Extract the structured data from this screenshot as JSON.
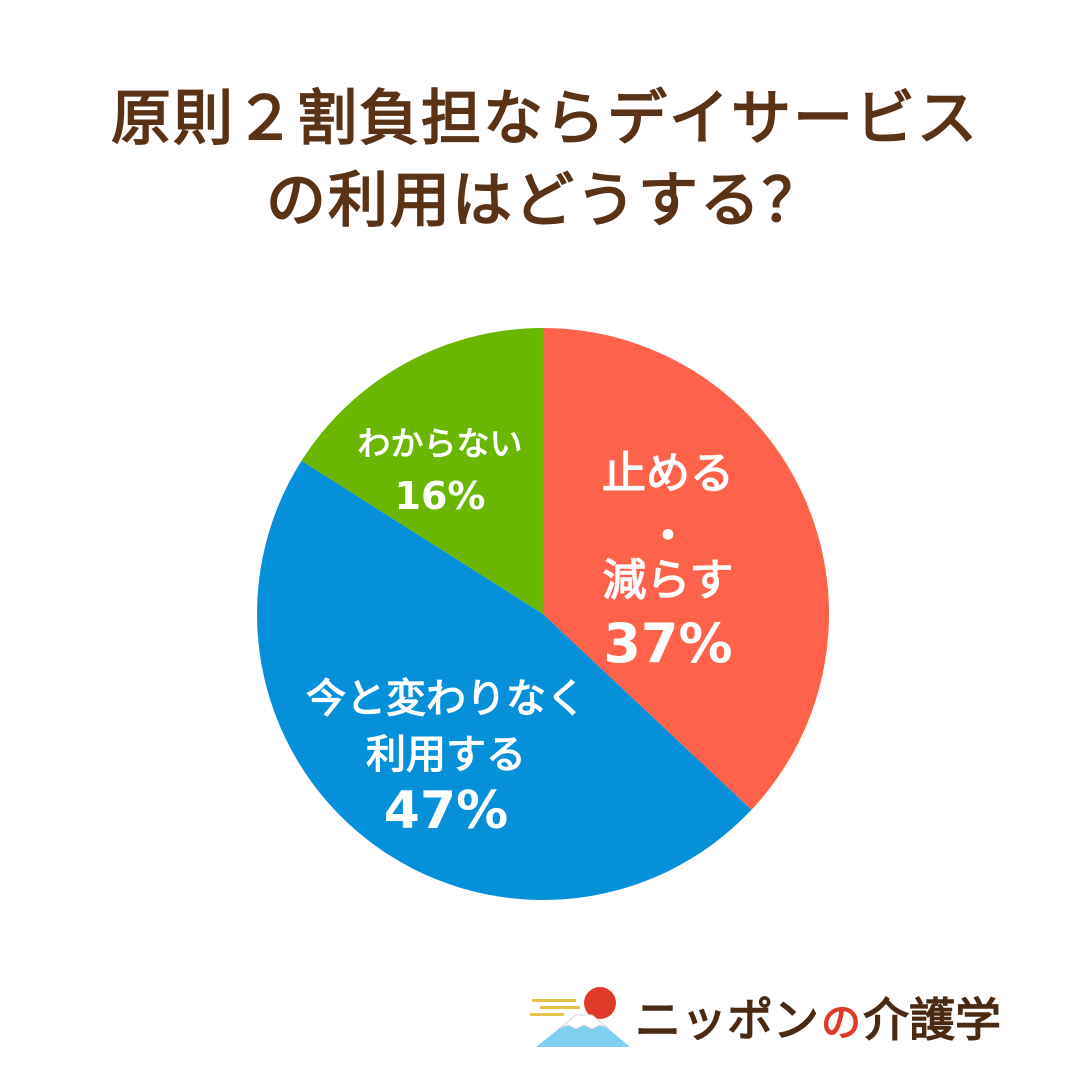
{
  "title": {
    "line1": "原則２割負担ならデイサービス",
    "line2": "の利用はどうする？"
  },
  "chart_data": {
    "type": "pie",
    "slices": [
      {
        "label_lines": [
          "止める",
          "・",
          "減らす"
        ],
        "value": 37,
        "value_text": "37%",
        "color": "#fe624a"
      },
      {
        "label_lines": [
          "今と変わりなく",
          "利用する"
        ],
        "value": 47,
        "value_text": "47%",
        "color": "#0690d9"
      },
      {
        "label_lines": [
          "わからない"
        ],
        "value": 16,
        "value_text": "16%",
        "color": "#6bb600"
      }
    ]
  },
  "logo": {
    "text_before": "ニッポン",
    "text_no": "の",
    "text_after": "介護学"
  }
}
